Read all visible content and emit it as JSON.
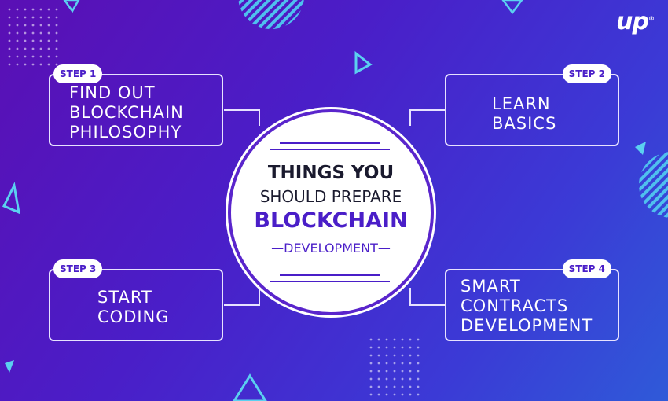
{
  "logo": {
    "text": "up",
    "mark": "®"
  },
  "center": {
    "line1": "THINGS YOU",
    "line2": "SHOULD PREPARE",
    "line3": "BLOCKCHAIN",
    "line4": "—DEVELOPMENT—"
  },
  "steps": [
    {
      "badge": "STEP 1",
      "text": "FIND OUT\nBLOCKCHAIN\nPHILOSOPHY"
    },
    {
      "badge": "STEP 2",
      "text": "LEARN\nBASICS"
    },
    {
      "badge": "STEP 3",
      "text": "START\nCODING"
    },
    {
      "badge": "STEP 4",
      "text": "SMART\nCONTRACTS\nDEVELOPMENT"
    }
  ],
  "colors": {
    "background_start": "#5a0fb4",
    "background_end": "#2f5ad8",
    "accent": "#4a1ec8",
    "decor_cyan": "#5bd0f0"
  }
}
